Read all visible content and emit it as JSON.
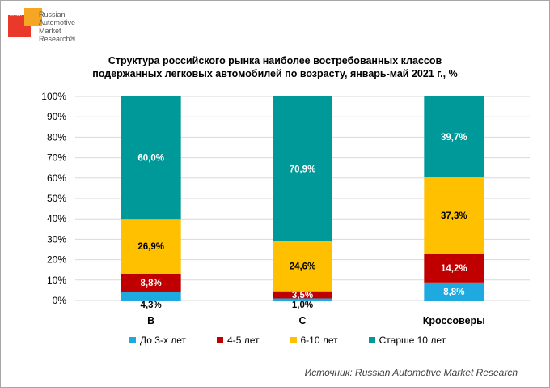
{
  "logo": {
    "small_text": "НАМИ",
    "lines": [
      "Russian",
      "Automotive",
      "Market",
      "Research®"
    ]
  },
  "title_line1": "Структура российского рынка наиболее востребованных классов",
  "title_line2": "подержанных легковых автомобилей по возрасту, январь-май 2021 г., %",
  "source": "Источник: Russian Automotive Market Research",
  "chart_data": {
    "type": "bar",
    "stacked": true,
    "categories": [
      "B",
      "C",
      "Кроссоверы"
    ],
    "series": [
      {
        "name": "До 3-х лет",
        "values": [
          4.3,
          1.0,
          8.8
        ],
        "labels": [
          "4,3%",
          "1,0%",
          "8,8%"
        ],
        "color": "#1fa9e1"
      },
      {
        "name": "4-5 лет",
        "values": [
          8.8,
          3.5,
          14.2
        ],
        "labels": [
          "8,8%",
          "3,5%",
          "14,2%"
        ],
        "color": "#c00000"
      },
      {
        "name": "6-10 лет",
        "values": [
          26.9,
          24.6,
          37.3
        ],
        "labels": [
          "26,9%",
          "24,6%",
          "37,3%"
        ],
        "color": "#ffc000"
      },
      {
        "name": "Старше 10 лет",
        "values": [
          60.0,
          70.9,
          39.7
        ],
        "labels": [
          "60,0%",
          "70,9%",
          "39,7%"
        ],
        "color": "#009999"
      }
    ],
    "y_ticks": [
      "0%",
      "10%",
      "20%",
      "30%",
      "40%",
      "50%",
      "60%",
      "70%",
      "80%",
      "90%",
      "100%"
    ],
    "ylim": [
      0,
      100
    ],
    "grid": true,
    "legend_position": "bottom"
  }
}
